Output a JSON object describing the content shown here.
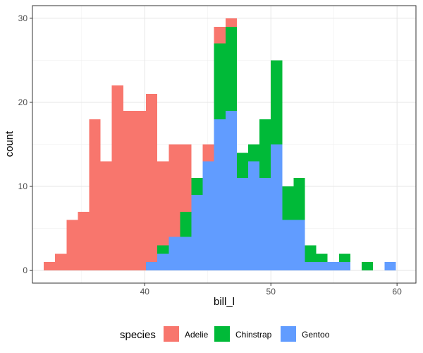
{
  "chart_data": {
    "type": "bar",
    "stacked": true,
    "grid": true,
    "legend_position": "bottom",
    "xlabel": "bill_l",
    "ylabel": "count",
    "xlim": [
      31.1,
      61.5
    ],
    "ylim": [
      -1.5,
      31.5
    ],
    "x_ticks": [
      40,
      50,
      60
    ],
    "y_ticks": [
      0,
      10,
      20,
      30
    ],
    "x_tick_labels": [
      "40",
      "50",
      "60"
    ],
    "y_tick_labels": [
      "0",
      "10",
      "20",
      "30"
    ],
    "legend_title": "species",
    "bin_starts": [
      32.0,
      32.9,
      33.8,
      34.7,
      35.6,
      36.5,
      37.4,
      38.3,
      39.2,
      40.1,
      41.0,
      41.9,
      42.8,
      43.7,
      44.6,
      45.5,
      46.4,
      47.3,
      48.2,
      49.1,
      50.0,
      50.9,
      51.8,
      52.7,
      53.6,
      54.5,
      55.4,
      56.3,
      57.2,
      58.1,
      59.0
    ],
    "bin_width": 0.9,
    "series": [
      {
        "name": "Gentoo",
        "color": "#619CFF",
        "values": [
          0,
          0,
          0,
          0,
          0,
          0,
          0,
          0,
          0,
          1,
          2,
          4,
          4,
          9,
          13,
          18,
          19,
          11,
          13,
          11,
          15,
          6,
          6,
          1,
          1,
          1,
          1,
          0,
          0,
          0,
          1
        ]
      },
      {
        "name": "Chinstrap",
        "color": "#00BA38",
        "values": [
          0,
          0,
          0,
          0,
          0,
          0,
          0,
          0,
          0,
          0,
          1,
          0,
          3,
          2,
          0,
          9,
          10,
          3,
          2,
          7,
          10,
          4,
          5,
          2,
          1,
          0,
          1,
          0,
          1,
          0,
          0
        ]
      },
      {
        "name": "Adelie",
        "color": "#F8766D",
        "values": [
          1,
          2,
          6,
          7,
          18,
          13,
          22,
          19,
          19,
          20,
          10,
          11,
          8,
          0,
          2,
          2,
          1,
          0,
          0,
          0,
          0,
          0,
          0,
          0,
          0,
          0,
          0,
          0,
          0,
          0,
          0
        ]
      }
    ]
  }
}
